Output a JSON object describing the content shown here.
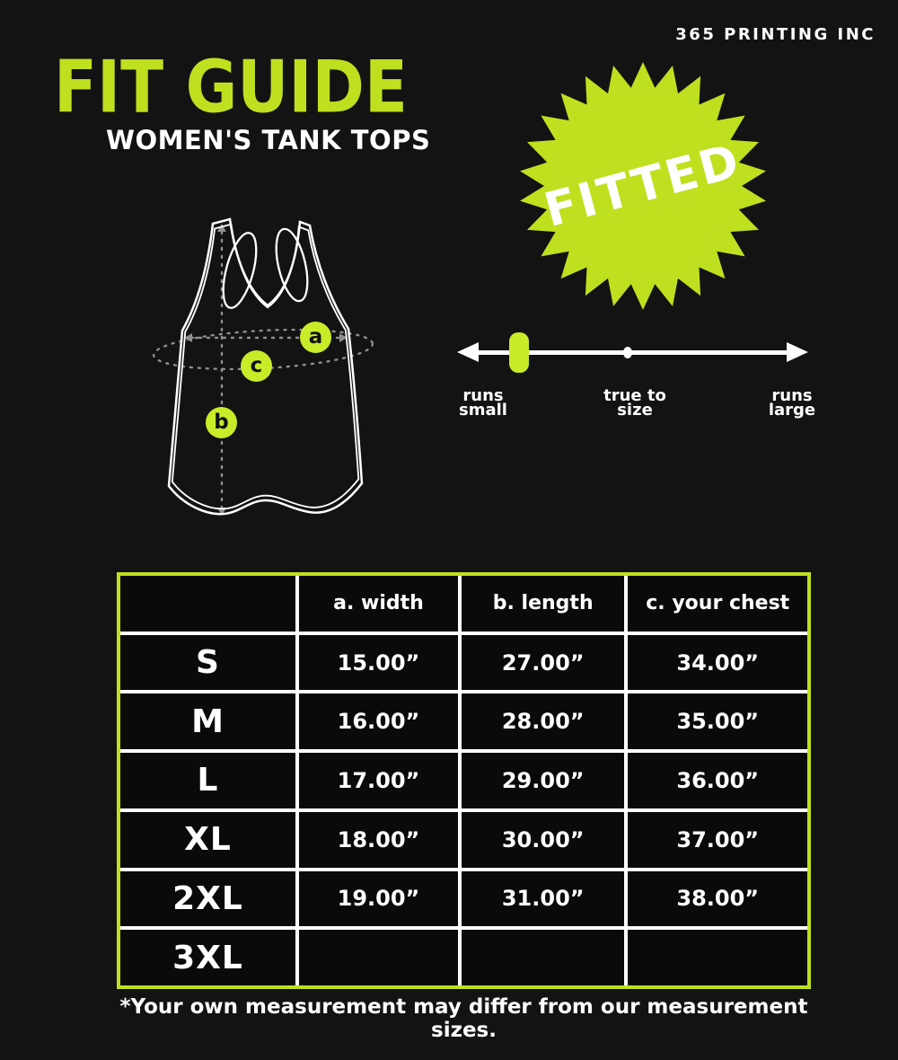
{
  "brand": "365 PRINTING INC",
  "header": {
    "title": "FIT GUIDE",
    "subtitle": "WOMEN'S TANK TOPS"
  },
  "badge": {
    "label": "FITTED"
  },
  "fit_scale": {
    "selected": "runs small",
    "labels": [
      {
        "line1": "runs",
        "line2": "small"
      },
      {
        "line1": "true to",
        "line2": "size"
      },
      {
        "line1": "runs",
        "line2": "large"
      }
    ]
  },
  "diagram": {
    "markers": [
      {
        "label": "a"
      },
      {
        "label": "b"
      },
      {
        "label": "c"
      }
    ]
  },
  "size_table": {
    "columns": [
      "",
      "a. width",
      "b. length",
      "c. your chest"
    ],
    "rows": [
      {
        "size": "S",
        "width": "15.00”",
        "length": "27.00”",
        "chest": "34.00”"
      },
      {
        "size": "M",
        "width": "16.00”",
        "length": "28.00”",
        "chest": "35.00”"
      },
      {
        "size": "L",
        "width": "17.00”",
        "length": "29.00”",
        "chest": "36.00”"
      },
      {
        "size": "XL",
        "width": "18.00”",
        "length": "30.00”",
        "chest": "37.00”"
      },
      {
        "size": "2XL",
        "width": "19.00”",
        "length": "31.00”",
        "chest": "38.00”"
      },
      {
        "size": "3XL",
        "width": "",
        "length": "",
        "chest": ""
      }
    ]
  },
  "footnote": "*Your own measurement may differ from our measurement sizes.",
  "colors": {
    "accent": "#bfe01f",
    "accent_bright": "#c8ec28",
    "background": "#131313",
    "text": "#ffffff"
  }
}
